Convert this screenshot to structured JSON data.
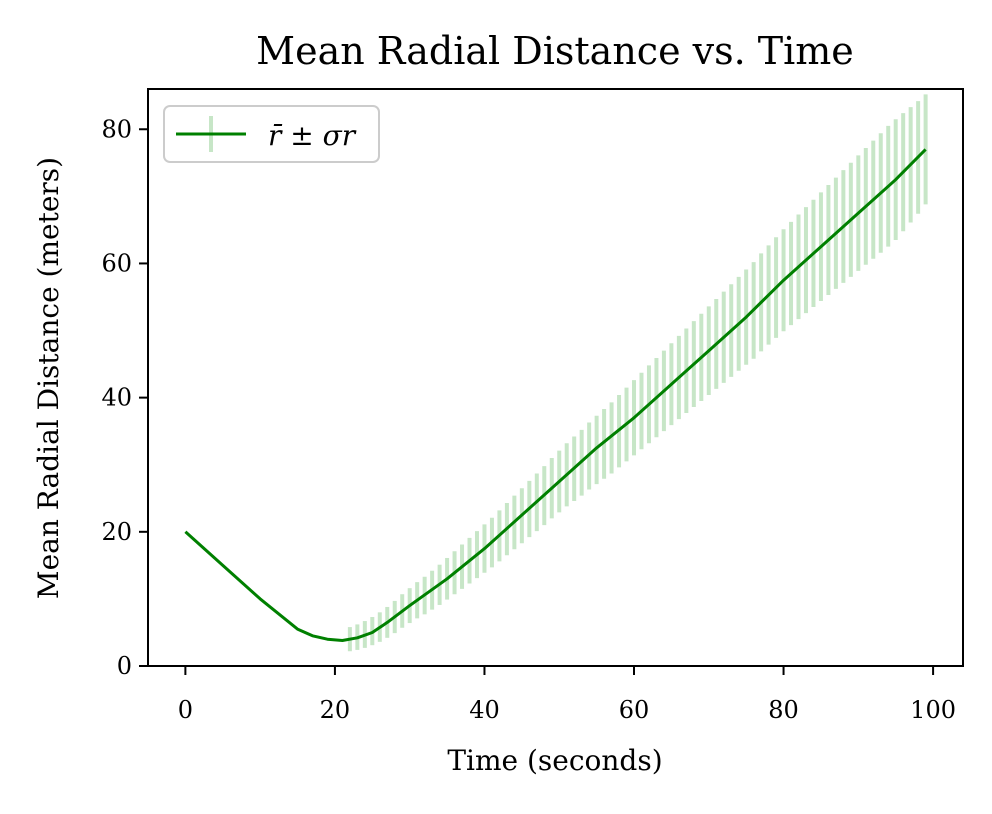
{
  "chart_data": {
    "type": "line",
    "title": "Mean Radial Distance vs. Time",
    "xlabel": "Time (seconds)",
    "ylabel": "Mean Radial Distance (meters)",
    "xlim": [
      -5,
      104
    ],
    "ylim": [
      0,
      86
    ],
    "xticks": [
      0,
      20,
      40,
      60,
      80,
      100
    ],
    "yticks": [
      0,
      20,
      40,
      60,
      80
    ],
    "xtick_labels": [
      "0",
      "20",
      "40",
      "60",
      "80",
      "100"
    ],
    "ytick_labels": [
      "0",
      "20",
      "40",
      "60",
      "80"
    ],
    "grid": false,
    "legend": {
      "position": "top-left"
    },
    "series": [
      {
        "name": "r̄ ± σr",
        "color": "#008000",
        "errorbar_color": "#c7e6c7",
        "x": [
          0,
          5,
          10,
          15,
          17,
          19,
          21,
          23,
          25,
          27,
          30,
          35,
          40,
          45,
          50,
          55,
          60,
          65,
          70,
          75,
          80,
          85,
          90,
          95,
          99
        ],
        "y": [
          20.0,
          15.0,
          10.0,
          5.5,
          4.5,
          4.0,
          3.8,
          4.2,
          5.0,
          6.5,
          9.0,
          13.0,
          17.5,
          22.5,
          27.5,
          32.5,
          37.0,
          42.0,
          47.0,
          52.0,
          57.5,
          62.5,
          67.5,
          72.5,
          77.0
        ],
        "err_x": [
          22,
          23,
          24,
          25,
          26,
          27,
          28,
          29,
          30,
          31,
          32,
          33,
          34,
          35,
          36,
          37,
          38,
          39,
          40,
          41,
          42,
          43,
          44,
          45,
          46,
          47,
          48,
          49,
          50,
          51,
          52,
          53,
          54,
          55,
          56,
          57,
          58,
          59,
          60,
          61,
          62,
          63,
          64,
          65,
          66,
          67,
          68,
          69,
          70,
          71,
          72,
          73,
          74,
          75,
          76,
          77,
          78,
          79,
          80,
          81,
          82,
          83,
          84,
          85,
          86,
          87,
          88,
          89,
          90,
          91,
          92,
          93,
          94,
          95,
          96,
          97,
          98,
          99
        ],
        "err_y": [
          4.0,
          4.3,
          4.7,
          5.2,
          5.8,
          6.5,
          7.3,
          8.2,
          9.0,
          9.8,
          10.5,
          11.3,
          12.1,
          13.0,
          13.9,
          14.8,
          15.7,
          16.6,
          17.5,
          18.4,
          19.4,
          20.4,
          21.4,
          22.4,
          23.4,
          24.4,
          25.4,
          26.5,
          27.5,
          28.5,
          29.4,
          30.3,
          31.3,
          32.2,
          33.1,
          34.0,
          35.0,
          36.0,
          37.0,
          38.0,
          39.0,
          40.0,
          41.0,
          42.0,
          43.0,
          44.0,
          45.0,
          46.0,
          47.0,
          48.0,
          49.0,
          50.0,
          51.0,
          52.0,
          53.0,
          54.2,
          55.3,
          56.4,
          57.5,
          58.5,
          59.5,
          60.5,
          61.5,
          62.5,
          63.5,
          64.5,
          65.5,
          66.5,
          67.5,
          68.5,
          69.5,
          70.5,
          71.5,
          72.5,
          73.6,
          74.7,
          75.8,
          77.0
        ],
        "err_sigma": [
          1.8,
          1.9,
          2.0,
          2.1,
          2.2,
          2.3,
          2.4,
          2.5,
          2.6,
          2.7,
          2.8,
          2.9,
          3.0,
          3.1,
          3.2,
          3.3,
          3.4,
          3.5,
          3.6,
          3.7,
          3.8,
          3.9,
          4.0,
          4.1,
          4.2,
          4.3,
          4.4,
          4.5,
          4.6,
          4.7,
          4.8,
          4.9,
          5.0,
          5.1,
          5.2,
          5.3,
          5.4,
          5.5,
          5.6,
          5.7,
          5.8,
          5.9,
          6.0,
          6.1,
          6.2,
          6.3,
          6.4,
          6.5,
          6.6,
          6.7,
          6.8,
          6.9,
          7.0,
          7.1,
          7.2,
          7.3,
          7.4,
          7.5,
          7.6,
          7.7,
          7.8,
          7.9,
          8.0,
          8.1,
          8.2,
          8.3,
          8.4,
          8.5,
          8.6,
          8.7,
          8.8,
          8.9,
          9.0,
          9.0,
          8.8,
          8.6,
          8.4,
          8.2
        ]
      }
    ]
  }
}
